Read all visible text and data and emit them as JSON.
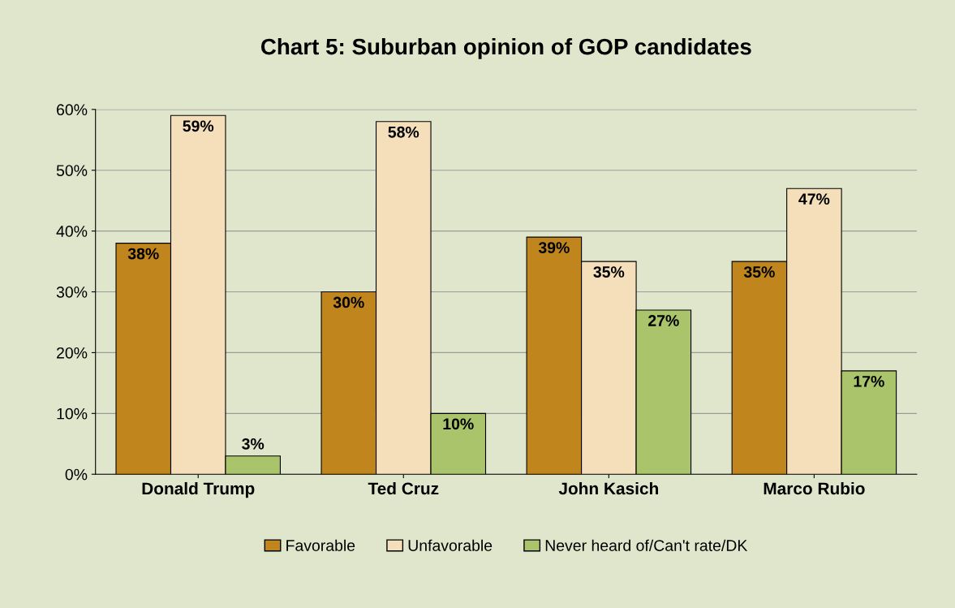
{
  "chart_data": {
    "type": "bar",
    "title": "Chart 5: Suburban opinion of GOP candidates",
    "categories": [
      "Donald Trump",
      "Ted Cruz",
      "John Kasich",
      "Marco Rubio"
    ],
    "series": [
      {
        "name": "Favorable",
        "color": "#c0851d",
        "values": [
          38,
          30,
          39,
          35
        ],
        "value_labels": [
          "38%",
          "30%",
          "39%",
          "35%"
        ]
      },
      {
        "name": "Unfavorable",
        "color": "#f5dfbb",
        "values": [
          59,
          58,
          35,
          47
        ],
        "value_labels": [
          "59%",
          "58%",
          "35%",
          "47%"
        ]
      },
      {
        "name": "Never heard of/Can't rate/DK",
        "color": "#a9c46a",
        "values": [
          3,
          10,
          27,
          17
        ],
        "value_labels": [
          "3%",
          "10%",
          "27%",
          "17%"
        ]
      }
    ],
    "ylim": [
      0,
      60
    ],
    "yticks": [
      {
        "value": 0,
        "label": "0%"
      },
      {
        "value": 10,
        "label": "10%"
      },
      {
        "value": 20,
        "label": "20%"
      },
      {
        "value": 30,
        "label": "30%"
      },
      {
        "value": 40,
        "label": "40%"
      },
      {
        "value": 50,
        "label": "50%"
      },
      {
        "value": 60,
        "label": "60%"
      }
    ],
    "grid": "y",
    "legend": "bottom"
  }
}
